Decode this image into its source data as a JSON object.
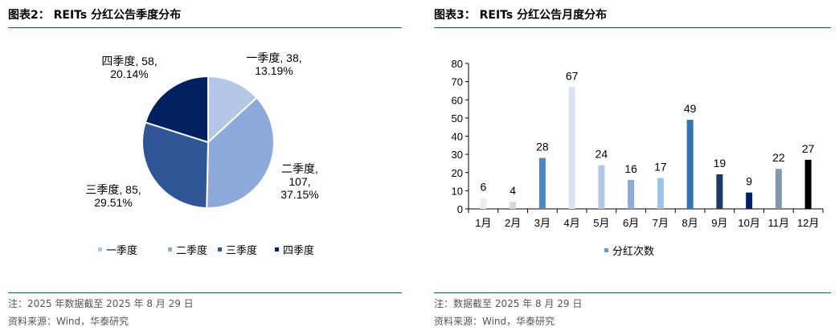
{
  "left": {
    "title": "图表2：  REITs 分红公告季度分布",
    "note": "注：2025 年数据截至 2025 年 8 月 29 日",
    "source": "资料来源：Wind，华泰研究"
  },
  "right": {
    "title": "图表3：  REITs 分红公告月度分布",
    "note": "注：数据截至 2025 年 8 月 29 日",
    "source": "资料来源：Wind，华泰研究"
  },
  "chart_data": [
    {
      "type": "pie",
      "title": "REITs 分红公告季度分布",
      "legend_position": "bottom",
      "slices": [
        {
          "name": "一季度",
          "value": 38,
          "percent": "13.19%",
          "color": "#b4c7e7"
        },
        {
          "name": "二季度",
          "value": 107,
          "percent": "37.15%",
          "color": "#8eaadb"
        },
        {
          "name": "三季度",
          "value": 85,
          "percent": "29.51%",
          "color": "#2f5597"
        },
        {
          "name": "四季度",
          "value": 58,
          "percent": "20.14%",
          "color": "#002060"
        }
      ],
      "data_labels": [
        {
          "lines": [
            "一季度, 38,",
            "13.19%"
          ]
        },
        {
          "lines": [
            "二季度,",
            "107,",
            "37.15%"
          ]
        },
        {
          "lines": [
            "三季度, 85,",
            "29.51%"
          ]
        },
        {
          "lines": [
            "四季度, 58,",
            "20.14%"
          ]
        }
      ]
    },
    {
      "type": "bar",
      "title": "REITs 分红公告月度分布",
      "categories": [
        "1月",
        "2月",
        "3月",
        "4月",
        "5月",
        "6月",
        "7月",
        "8月",
        "9月",
        "10月",
        "11月",
        "12月"
      ],
      "series": [
        {
          "name": "分红次数",
          "values": [
            6,
            4,
            28,
            67,
            24,
            16,
            17,
            49,
            19,
            9,
            22,
            27
          ]
        }
      ],
      "bar_colors": [
        "#ededed",
        "#d9d9d9",
        "#4a86c5",
        "#dae3f3",
        "#b4c7e7",
        "#8eaadb",
        "#9dc3e6",
        "#2e75b6",
        "#203864",
        "#002060",
        "#8497b0",
        "#000000"
      ],
      "legend_color": "#5b9bd5",
      "ylim": [
        0,
        80
      ],
      "yticks": [
        0,
        10,
        20,
        30,
        40,
        50,
        60,
        70,
        80
      ],
      "legend_position": "bottom",
      "grid": false
    }
  ]
}
